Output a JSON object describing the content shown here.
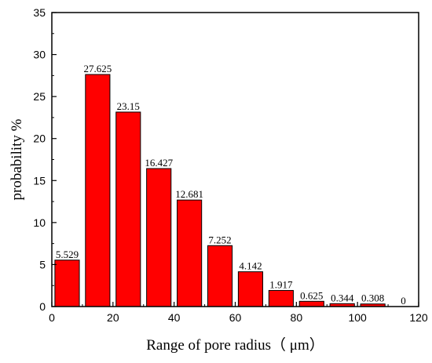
{
  "chart_data": {
    "type": "bar",
    "xlabel": "Range of pore radius（ μm）",
    "ylabel": "probability %",
    "x": [
      5,
      15,
      25,
      35,
      45,
      55,
      65,
      75,
      85,
      95,
      105,
      115
    ],
    "values": [
      5.529,
      27.625,
      23.15,
      16.427,
      12.681,
      7.252,
      4.142,
      1.917,
      0.625,
      0.344,
      0.308,
      0
    ],
    "value_labels": [
      "5.529",
      "27.625",
      "23.15",
      "16.427",
      "12.681",
      "7.252",
      "4.142",
      "1.917",
      "0.625",
      "0.344",
      "0.308",
      "0"
    ],
    "bar_width": 8,
    "xlim": [
      0,
      120
    ],
    "ylim": [
      0,
      35
    ],
    "xticks": [
      0,
      20,
      40,
      60,
      80,
      100,
      120
    ],
    "xtick_labels": [
      "0",
      "20",
      "40",
      "60",
      "80",
      "100",
      "120"
    ],
    "yticks": [
      0,
      5,
      10,
      15,
      20,
      25,
      30,
      35
    ],
    "ytick_labels": [
      "0",
      "5",
      "10",
      "15",
      "20",
      "25",
      "30",
      "35"
    ],
    "bar_color": "#ff0000",
    "grid": false,
    "legend": "none"
  }
}
